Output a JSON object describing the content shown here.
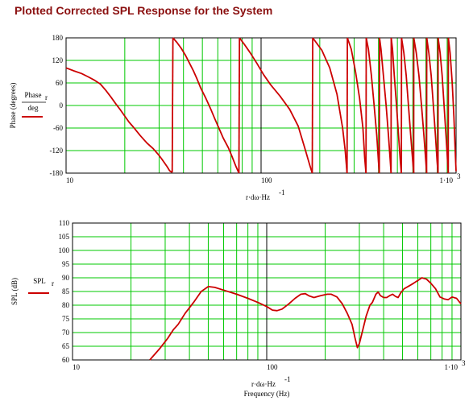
{
  "title": "Plotted Corrected SPL Response for the System",
  "colors": {
    "grid": "#00c800",
    "trace": "#cc0000",
    "frame": "#000000",
    "title": "#8b1010"
  },
  "chart_data": [
    {
      "type": "line",
      "name": "phase",
      "ylabel": "Phase (degrees)",
      "legend": {
        "numerator": "Phase",
        "numerator_sub": "r",
        "denominator": "deg"
      },
      "xlabel_main": "r·dω·Hz",
      "xlabel_exp": "-1",
      "xlabel_sub": "",
      "x_scale": "log",
      "xlim": [
        10,
        1000
      ],
      "ylim": [
        -180,
        180
      ],
      "yticks": [
        "180",
        "120",
        "60",
        "0",
        "-60",
        "-120",
        "-180"
      ],
      "xticks": [
        {
          "v": 10,
          "t": "10",
          "exp": ""
        },
        {
          "v": 100,
          "t": "100",
          "exp": ""
        },
        {
          "v": 1000,
          "t": "1·10",
          "exp": "3"
        }
      ],
      "segments": [
        [
          [
            10,
            100
          ],
          [
            11,
            92
          ],
          [
            12,
            85
          ],
          [
            13,
            76
          ],
          [
            14,
            67
          ],
          [
            15,
            57
          ],
          [
            16,
            40
          ],
          [
            17,
            22
          ],
          [
            18,
            4
          ],
          [
            19,
            -12
          ],
          [
            20,
            -28
          ],
          [
            21,
            -44
          ],
          [
            22,
            -56
          ],
          [
            24,
            -80
          ],
          [
            26,
            -100
          ],
          [
            28,
            -115
          ],
          [
            30,
            -133
          ],
          [
            31,
            -143
          ],
          [
            32,
            -153
          ],
          [
            33,
            -163
          ],
          [
            34,
            -174
          ],
          [
            35,
            -178
          ]
        ],
        [
          [
            35.3,
            180
          ],
          [
            37,
            168
          ],
          [
            39,
            152
          ],
          [
            41,
            133
          ],
          [
            43,
            112
          ],
          [
            45,
            92
          ],
          [
            47,
            70
          ],
          [
            49,
            47
          ],
          [
            52,
            20
          ],
          [
            55,
            -8
          ],
          [
            58,
            -36
          ],
          [
            61,
            -62
          ],
          [
            64,
            -87
          ],
          [
            68,
            -113
          ],
          [
            71,
            -136
          ],
          [
            74,
            -160
          ],
          [
            77,
            -180
          ]
        ],
        [
          [
            77.5,
            180
          ],
          [
            82,
            163
          ],
          [
            88,
            140
          ],
          [
            95,
            113
          ],
          [
            103,
            82
          ],
          [
            112,
            55
          ],
          [
            125,
            25
          ],
          [
            140,
            -10
          ],
          [
            155,
            -55
          ],
          [
            168,
            -115
          ],
          [
            178,
            -160
          ],
          [
            183,
            -180
          ]
        ],
        [
          [
            184,
            180
          ],
          [
            205,
            147
          ],
          [
            225,
            100
          ],
          [
            245,
            30
          ],
          [
            262,
            -60
          ],
          [
            270,
            -120
          ],
          [
            276,
            -180
          ]
        ],
        [
          [
            277,
            180
          ],
          [
            290,
            150
          ],
          [
            305,
            90
          ],
          [
            320,
            20
          ],
          [
            333,
            -60
          ],
          [
            340,
            -140
          ],
          [
            345,
            -180
          ]
        ],
        [
          [
            346,
            180
          ],
          [
            355,
            150
          ],
          [
            368,
            80
          ],
          [
            380,
            0
          ],
          [
            392,
            -80
          ],
          [
            400,
            -150
          ],
          [
            404,
            -180
          ]
        ],
        [
          [
            405,
            180
          ],
          [
            412,
            150
          ],
          [
            424,
            80
          ],
          [
            438,
            0
          ],
          [
            450,
            -80
          ],
          [
            460,
            -150
          ],
          [
            464,
            -180
          ]
        ],
        [
          [
            465,
            180
          ],
          [
            472,
            150
          ],
          [
            482,
            80
          ],
          [
            495,
            0
          ],
          [
            507,
            -80
          ],
          [
            518,
            -150
          ],
          [
            524,
            -180
          ]
        ],
        [
          [
            525,
            180
          ],
          [
            540,
            140
          ],
          [
            555,
            80
          ],
          [
            570,
            0
          ],
          [
            585,
            -80
          ],
          [
            600,
            -150
          ],
          [
            606,
            -180
          ]
        ],
        [
          [
            607,
            180
          ],
          [
            625,
            140
          ],
          [
            645,
            80
          ],
          [
            665,
            0
          ],
          [
            684,
            -80
          ],
          [
            700,
            -150
          ],
          [
            706,
            -180
          ]
        ],
        [
          [
            707,
            180
          ],
          [
            725,
            140
          ],
          [
            745,
            80
          ],
          [
            765,
            0
          ],
          [
            784,
            -80
          ],
          [
            800,
            -150
          ],
          [
            808,
            -180
          ]
        ],
        [
          [
            809,
            180
          ],
          [
            828,
            140
          ],
          [
            848,
            80
          ],
          [
            868,
            0
          ],
          [
            888,
            -80
          ],
          [
            905,
            -150
          ],
          [
            912,
            -180
          ]
        ],
        [
          [
            913,
            180
          ],
          [
            932,
            140
          ],
          [
            955,
            60
          ],
          [
            975,
            -30
          ],
          [
            990,
            -120
          ],
          [
            1000,
            -175
          ]
        ]
      ]
    },
    {
      "type": "line",
      "name": "spl",
      "ylabel": "SPL (dB)",
      "legend": {
        "numerator": "SPL",
        "numerator_sub": "r",
        "denominator": ""
      },
      "xlabel_main": "r·dω·Hz",
      "xlabel_exp": "-1",
      "xlabel_sub": "Frequency (Hz)",
      "x_scale": "log",
      "xlim": [
        10,
        1000
      ],
      "ylim": [
        60,
        110
      ],
      "yticks": [
        "110",
        "105",
        "100",
        "95",
        "90",
        "85",
        "80",
        "75",
        "70",
        "65",
        "60"
      ],
      "xticks": [
        {
          "v": 10,
          "t": "10",
          "exp": ""
        },
        {
          "v": 100,
          "t": "100",
          "exp": ""
        },
        {
          "v": 1000,
          "t": "1·10",
          "exp": "3"
        }
      ],
      "segments": [
        [
          [
            25,
            60
          ],
          [
            28,
            64
          ],
          [
            31,
            68
          ],
          [
            33,
            71
          ],
          [
            35,
            73
          ],
          [
            38,
            77
          ],
          [
            42,
            81
          ],
          [
            46,
            85
          ],
          [
            50,
            86.8
          ],
          [
            54,
            86.5
          ],
          [
            60,
            85.5
          ],
          [
            70,
            84
          ],
          [
            80,
            82.5
          ],
          [
            90,
            81
          ],
          [
            100,
            79.5
          ],
          [
            107,
            78.2
          ],
          [
            113,
            78
          ],
          [
            120,
            78.6
          ],
          [
            130,
            80.5
          ],
          [
            140,
            82.5
          ],
          [
            150,
            84
          ],
          [
            158,
            84.2
          ],
          [
            165,
            83.4
          ],
          [
            175,
            82.8
          ],
          [
            190,
            83.5
          ],
          [
            205,
            84
          ],
          [
            215,
            84
          ],
          [
            230,
            83
          ],
          [
            245,
            80.5
          ],
          [
            260,
            77
          ],
          [
            275,
            73
          ],
          [
            285,
            68
          ],
          [
            293,
            64.5
          ],
          [
            300,
            66
          ],
          [
            310,
            70
          ],
          [
            325,
            76
          ],
          [
            340,
            80
          ],
          [
            350,
            81
          ],
          [
            365,
            84
          ],
          [
            375,
            84.8
          ],
          [
            385,
            83.5
          ],
          [
            400,
            82.8
          ],
          [
            415,
            82.8
          ],
          [
            430,
            83.5
          ],
          [
            445,
            84
          ],
          [
            460,
            83.2
          ],
          [
            475,
            82.8
          ],
          [
            490,
            84.5
          ],
          [
            510,
            86
          ],
          [
            540,
            87
          ],
          [
            570,
            88
          ],
          [
            600,
            89
          ],
          [
            630,
            90
          ],
          [
            665,
            89.5
          ],
          [
            700,
            88
          ],
          [
            740,
            86
          ],
          [
            780,
            83
          ],
          [
            820,
            82.3
          ],
          [
            860,
            82
          ],
          [
            900,
            83
          ],
          [
            950,
            82.5
          ],
          [
            1000,
            80.5
          ]
        ]
      ]
    }
  ]
}
